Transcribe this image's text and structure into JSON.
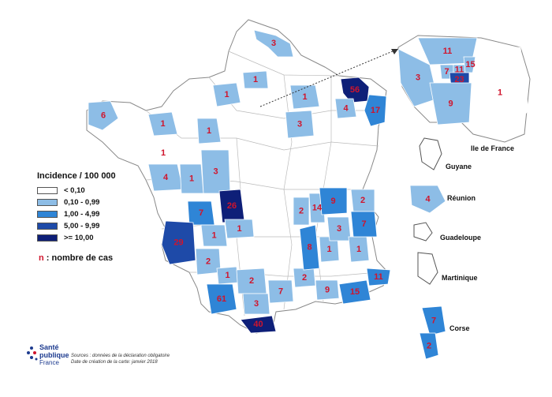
{
  "legend": {
    "title": "Incidence / 100 000",
    "classes": [
      {
        "label": "< 0,10",
        "color": "#ffffff"
      },
      {
        "label": "0,10 - 0,99",
        "color": "#8dbde6"
      },
      {
        "label": "1,00 - 4,99",
        "color": "#2f85d6"
      },
      {
        "label": "5,00 - 9,99",
        "color": "#1e4aa8"
      },
      {
        "label": ">= 10,00",
        "color": "#0e1f78"
      }
    ],
    "note_n": "n",
    "note_rest": " : nombre de cas"
  },
  "territories": {
    "ile_de_france": "Ile de France",
    "guyane": "Guyane",
    "reunion": "Réunion",
    "guadeloupe": "Guadeloupe",
    "martinique": "Martinique",
    "corse": "Corse"
  },
  "logo": {
    "line1": "Santé",
    "line2": "publique",
    "line3": "France"
  },
  "sources": {
    "line1": "Sources : données de la déclaration obligatoire",
    "line2": "Date de création de la carte: janvier 2018"
  },
  "map_values": [
    {
      "id": "nord",
      "n": "3",
      "class": 1
    },
    {
      "id": "somme",
      "n": "1",
      "class": 1
    },
    {
      "id": "seine-maritime",
      "n": "1",
      "class": 1
    },
    {
      "id": "marne",
      "n": "1",
      "class": 1
    },
    {
      "id": "bas-rhin",
      "n": "56",
      "class": 4
    },
    {
      "id": "moselle",
      "n": "4",
      "class": 1
    },
    {
      "id": "haut-rhin",
      "n": "17",
      "class": 2
    },
    {
      "id": "aube",
      "n": "3",
      "class": 1
    },
    {
      "id": "finistere",
      "n": "6",
      "class": 1
    },
    {
      "id": "manche-calvados",
      "n": "1",
      "class": 1
    },
    {
      "id": "sarthe-eure",
      "n": "1",
      "class": 1
    },
    {
      "id": "ille-vilaine",
      "n": "1",
      "class": 0
    },
    {
      "id": "loire-atlantique",
      "n": "4",
      "class": 1
    },
    {
      "id": "maine-loire",
      "n": "1",
      "class": 1
    },
    {
      "id": "indre-loire",
      "n": "3",
      "class": 1
    },
    {
      "id": "vienne",
      "n": "26",
      "class": 4
    },
    {
      "id": "charente-maritime",
      "n": "7",
      "class": 2
    },
    {
      "id": "haute-vienne",
      "n": "1",
      "class": 1
    },
    {
      "id": "charente",
      "n": "1",
      "class": 1
    },
    {
      "id": "gironde",
      "n": "29",
      "class": 3
    },
    {
      "id": "dordogne",
      "n": "2",
      "class": 1
    },
    {
      "id": "lot",
      "n": "1",
      "class": 1
    },
    {
      "id": "tarn-garonne",
      "n": "2",
      "class": 1
    },
    {
      "id": "haute-garonne",
      "n": "61",
      "class": 2
    },
    {
      "id": "aude",
      "n": "3",
      "class": 1
    },
    {
      "id": "pyrenees-orientales",
      "n": "40",
      "class": 4
    },
    {
      "id": "herault",
      "n": "7",
      "class": 1
    },
    {
      "id": "gard",
      "n": "9",
      "class": 1
    },
    {
      "id": "bouches-du-rhone",
      "n": "15",
      "class": 2
    },
    {
      "id": "alpes-maritimes",
      "n": "11",
      "class": 2
    },
    {
      "id": "var",
      "n": "2",
      "class": 1
    },
    {
      "id": "drome",
      "n": "8",
      "class": 2
    },
    {
      "id": "ardeche",
      "n": "1",
      "class": 1
    },
    {
      "id": "isere",
      "n": "3",
      "class": 1
    },
    {
      "id": "hautes-alpes",
      "n": "1",
      "class": 1
    },
    {
      "id": "loire",
      "n": "2",
      "class": 1
    },
    {
      "id": "rhone",
      "n": "14",
      "class": 1
    },
    {
      "id": "ain",
      "n": "9",
      "class": 2
    },
    {
      "id": "haute-savoie",
      "n": "2",
      "class": 1
    },
    {
      "id": "savoie",
      "n": "7",
      "class": 2
    },
    {
      "id": "idf-95",
      "n": "11",
      "class": 1
    },
    {
      "id": "idf-78",
      "n": "3",
      "class": 1
    },
    {
      "id": "idf-92",
      "n": "7",
      "class": 1
    },
    {
      "id": "idf-93",
      "n": "11",
      "class": 1
    },
    {
      "id": "idf-93b",
      "n": "15",
      "class": 1
    },
    {
      "id": "idf-75",
      "n": "23",
      "class": 3
    },
    {
      "id": "idf-91",
      "n": "9",
      "class": 1
    },
    {
      "id": "idf-77",
      "n": "1",
      "class": 0
    },
    {
      "id": "reunion",
      "n": "4",
      "class": 1
    },
    {
      "id": "haute-corse",
      "n": "7",
      "class": 2
    },
    {
      "id": "corse-du-sud",
      "n": "2",
      "class": 2
    }
  ]
}
